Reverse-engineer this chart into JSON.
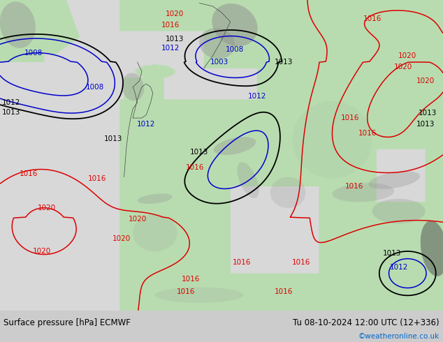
{
  "title_left": "Surface pressure [hPa] ECMWF",
  "title_right": "Tu 08-10-2024 12:00 UTC (12+336)",
  "copyright": "©weatheronline.co.uk",
  "copyright_color": "#0066cc",
  "footer_text_color": "#000000",
  "fig_width": 6.34,
  "fig_height": 4.9,
  "dpi": 100,
  "land_color": "#b8dcb0",
  "sea_color": "#d8d8d8",
  "terrain_color": "#aaaaaa",
  "contour_colors": {
    "red": "#dd0000",
    "blue": "#0000cc",
    "black": "#000000"
  },
  "footer_bg": "#cccccc"
}
